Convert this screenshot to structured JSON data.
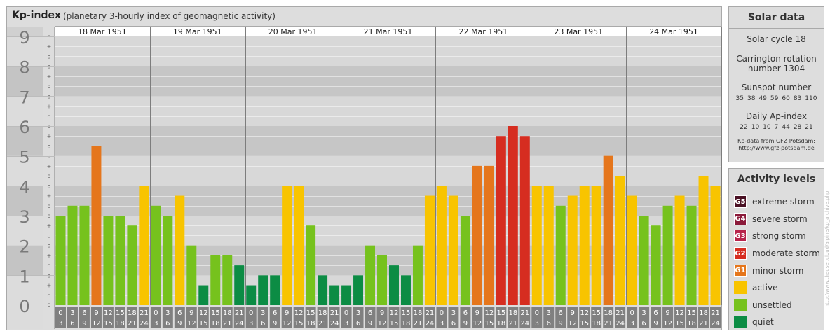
{
  "header": {
    "title": "Kp-index",
    "subtitle": "(planetary 3-hourly index of geomagnetic activity)"
  },
  "chart_data": {
    "type": "bar",
    "ylim": [
      0,
      9
    ],
    "y_ticks": [
      "0",
      "1",
      "2",
      "3",
      "4",
      "5",
      "6",
      "7",
      "8",
      "9"
    ],
    "minor_labels": [
      "+",
      "o",
      "-"
    ],
    "days": [
      "18 Mar 1951",
      "19 Mar 1951",
      "20 Mar 1951",
      "21 Mar 1951",
      "22 Mar 1951",
      "23 Mar 1951",
      "24 Mar 1951"
    ],
    "interval_starts": [
      "0",
      "3",
      "6",
      "9",
      "12",
      "15",
      "18",
      "21"
    ],
    "interval_ends": [
      "3",
      "6",
      "9",
      "12",
      "15",
      "18",
      "21",
      "24"
    ],
    "values": [
      3.0,
      3.333,
      3.333,
      5.333,
      3.0,
      3.0,
      2.667,
      4.0,
      3.333,
      3.0,
      3.667,
      2.0,
      0.667,
      1.667,
      1.667,
      1.333,
      0.667,
      1.0,
      1.0,
      4.0,
      4.0,
      2.667,
      1.0,
      0.667,
      0.667,
      1.0,
      2.0,
      1.667,
      1.333,
      1.0,
      2.0,
      3.667,
      4.0,
      3.667,
      3.0,
      4.667,
      4.667,
      5.667,
      6.0,
      5.667,
      4.0,
      4.0,
      3.333,
      3.667,
      4.0,
      4.0,
      5.0,
      4.333,
      3.667,
      3.0,
      2.667,
      3.333,
      3.667,
      3.333,
      4.333,
      4.0
    ],
    "colors": {
      "quiet": "#0c8c44",
      "unsettled": "#76c21d",
      "active": "#f8c400",
      "minor": "#e5761c",
      "moderate": "#d62d20",
      "band_dark": "#c6c6c6",
      "band_light": "#d8d8d8",
      "axis_panel": "#808080",
      "tick_label": "#ffffff"
    }
  },
  "solar": {
    "title": "Solar data",
    "cycle": "Solar cycle 18",
    "carrington_1": "Carrington rotation",
    "carrington_2": "number 1304",
    "sunspot_title": "Sunspot number",
    "sunspots": [
      "35",
      "38",
      "49",
      "59",
      "60",
      "83",
      "110"
    ],
    "ap_title": "Daily Ap-index",
    "ap_values": [
      "22",
      "10",
      "10",
      "7",
      "44",
      "28",
      "21"
    ],
    "source_1": "Kp-data from GFZ Potsdam:",
    "source_2": "http://www.gfz-potsdam.de"
  },
  "activity": {
    "title": "Activity levels",
    "items": [
      {
        "badge": "G5",
        "label": "extreme storm",
        "color": "#4a1124"
      },
      {
        "badge": "G4",
        "label": "severe storm",
        "color": "#8b1a3a"
      },
      {
        "badge": "G3",
        "label": "strong storm",
        "color": "#b8234b"
      },
      {
        "badge": "G2",
        "label": "moderate storm",
        "color": "#d62d20"
      },
      {
        "badge": "G1",
        "label": "minor storm",
        "color": "#e5761c"
      },
      {
        "badge": "",
        "label": "active",
        "color": "#f8c400"
      },
      {
        "badge": "",
        "label": "unsettled",
        "color": "#76c21d"
      },
      {
        "badge": "",
        "label": "quiet",
        "color": "#0c8c44"
      }
    ]
  },
  "watermark": "http://www.theuser.cloud/alpine/kp_archive.php"
}
